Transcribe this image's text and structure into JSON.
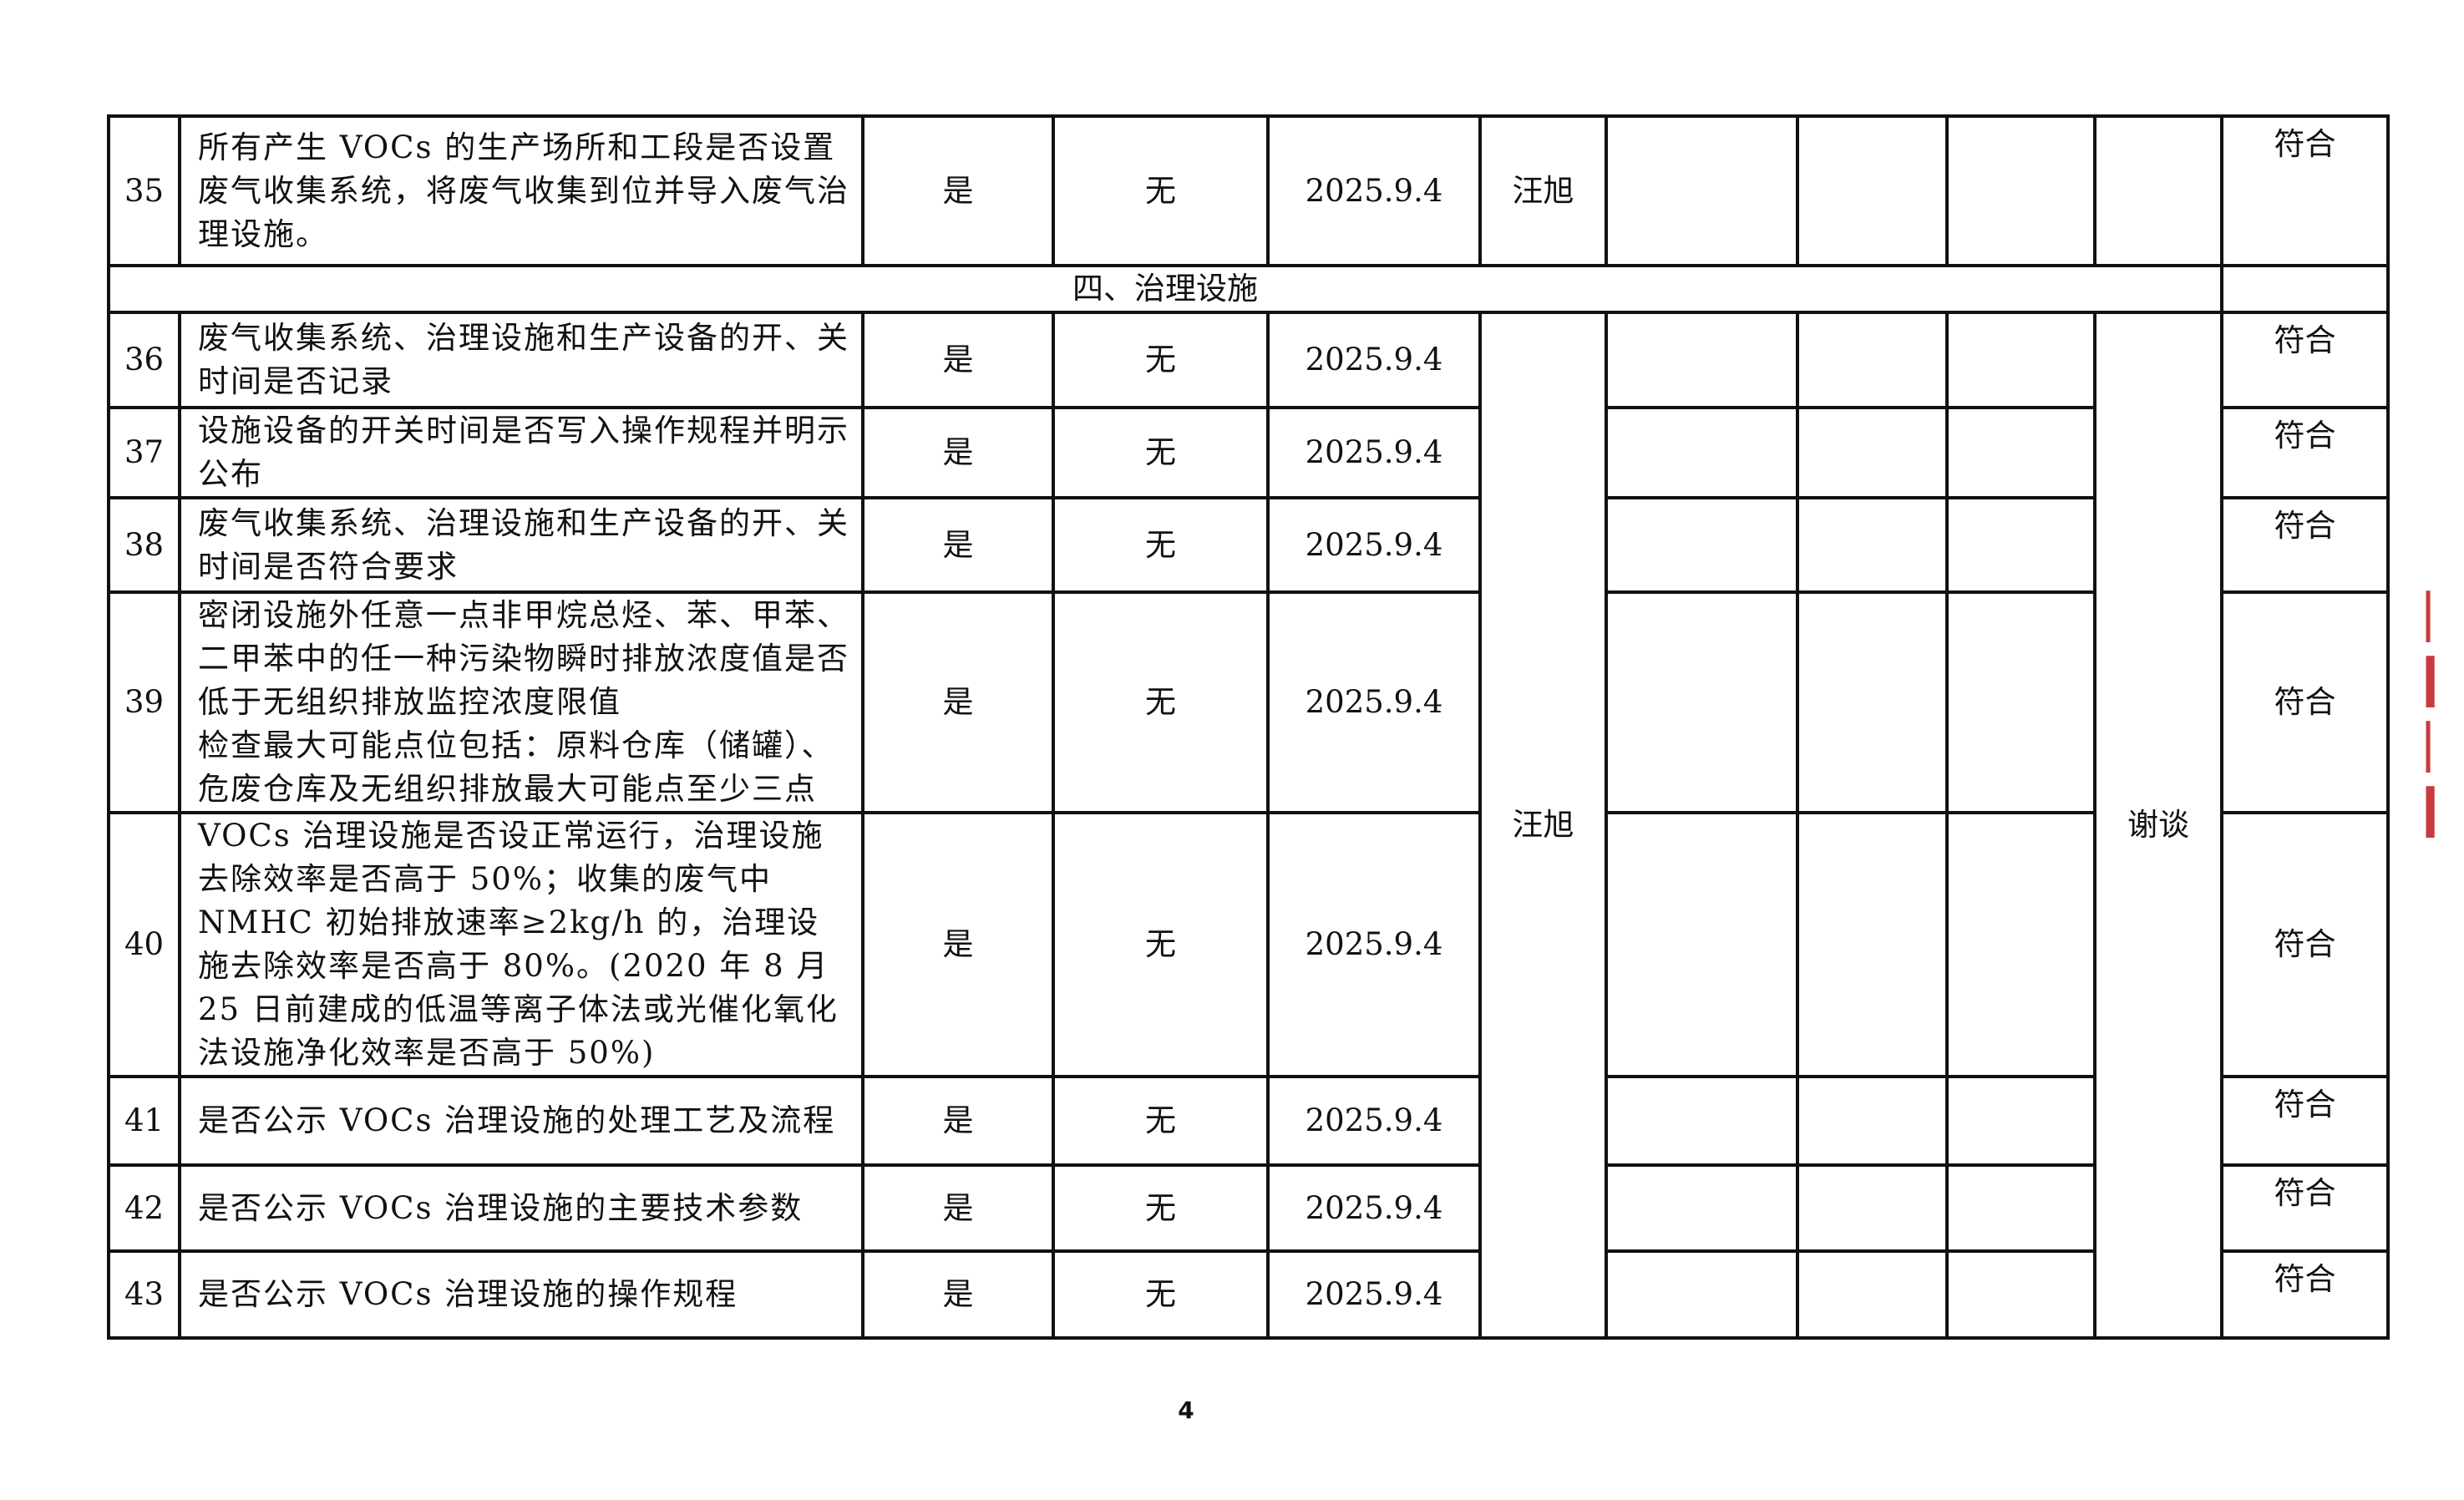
{
  "rows_top": [
    {
      "no": "35",
      "item": "所有产生 VOCs 的生产场所和工段是否设置废气收集系统，将废气收集到位并导入废气治理设施。",
      "answer": "是",
      "issue": "无",
      "date": "2025.9.4",
      "inspector": "汪旭",
      "result": "符合"
    }
  ],
  "section": {
    "title": "四、治理设施"
  },
  "rows": [
    {
      "no": "36",
      "item": "废气收集系统、治理设施和生产设备的开、关时间是否记录",
      "answer": "是",
      "issue": "无",
      "date": "2025.9.4",
      "result": "符合"
    },
    {
      "no": "37",
      "item": "设施设备的开关时间是否写入操作规程并明示公布",
      "answer": "是",
      "issue": "无",
      "date": "2025.9.4",
      "result": "符合"
    },
    {
      "no": "38",
      "item": "废气收集系统、治理设施和生产设备的开、关时间是否符合要求",
      "answer": "是",
      "issue": "无",
      "date": "2025.9.4",
      "result": "符合"
    },
    {
      "no": "39",
      "item": "密闭设施外任意一点非甲烷总烃、苯、甲苯、二甲苯中的任一种污染物瞬时排放浓度值是否低于无组织排放监控浓度限值\n检查最大可能点位包括：原料仓库（储罐）、危废仓库及无组织排放最大可能点至少三点",
      "answer": "是",
      "issue": "无",
      "date": "2025.9.4",
      "result": "符合"
    },
    {
      "no": "40",
      "item": "VOCs 治理设施是否设正常运行，治理设施去除效率是否高于 50%；收集的废气中 NMHC 初始排放速率≥2kg/h 的，治理设施去除效率是否高于 80%。(2020 年 8 月 25 日前建成的低温等离子体法或光催化氧化法设施净化效率是否高于 50%)",
      "answer": "是",
      "issue": "无",
      "date": "2025.9.4",
      "result": "符合"
    },
    {
      "no": "41",
      "item": "是否公示 VOCs 治理设施的处理工艺及流程",
      "answer": "是",
      "issue": "无",
      "date": "2025.9.4",
      "result": "符合"
    },
    {
      "no": "42",
      "item": "是否公示 VOCs 治理设施的主要技术参数",
      "answer": "是",
      "issue": "无",
      "date": "2025.9.4",
      "result": "符合"
    },
    {
      "no": "43",
      "item": "是否公示 VOCs 治理设施的操作规程",
      "answer": "是",
      "issue": "无",
      "date": "2025.9.4",
      "result": "符合"
    }
  ],
  "merged": {
    "inspector": "汪旭",
    "method": "谢谈"
  },
  "page_number": "4",
  "stamp": {
    "color": "#c0181e"
  }
}
